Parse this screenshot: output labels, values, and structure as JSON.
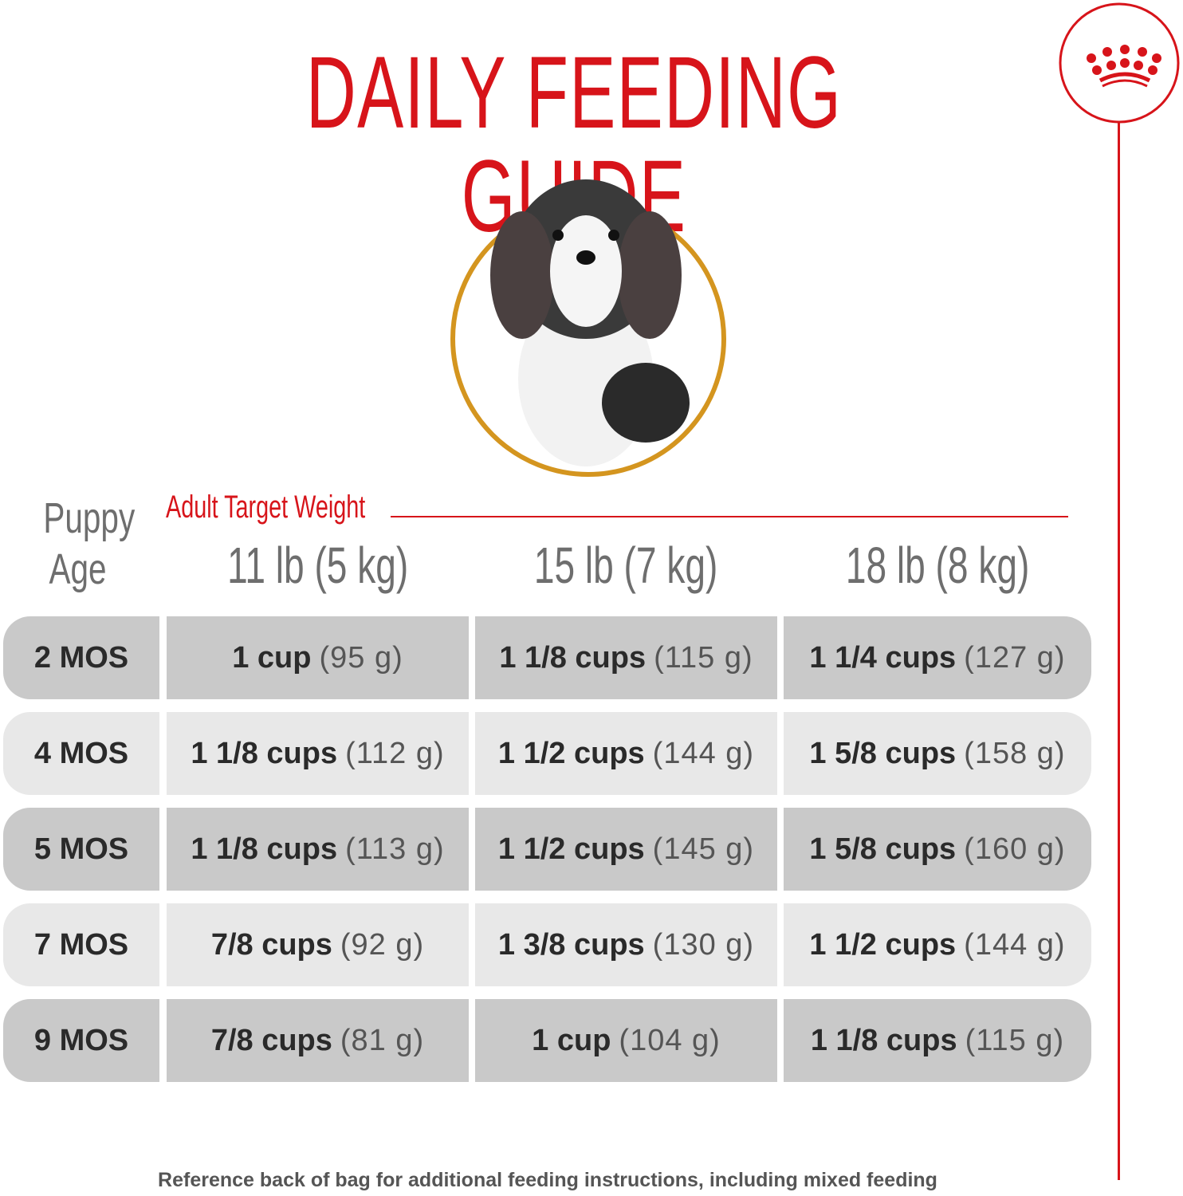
{
  "title": "DAILY FEEDING GUIDE",
  "colors": {
    "brand_red": "#d7141a",
    "ring_gold": "#d4951f",
    "row_dark": "#c9c9c9",
    "row_light": "#e8e8e8"
  },
  "header": {
    "puppy": "Puppy",
    "age": "Age",
    "adult_target_weight": "Adult Target Weight",
    "weights": [
      "11 lb (5 kg)",
      "15 lb (7 kg)",
      "18 lb (8 kg)"
    ]
  },
  "rows": [
    {
      "age": "2 MOS",
      "cells": [
        {
          "cups": "1 cup",
          "grams": "(95 g)"
        },
        {
          "cups": "1 1/8 cups",
          "grams": "(115 g)"
        },
        {
          "cups": "1 1/4 cups",
          "grams": "(127 g)"
        }
      ]
    },
    {
      "age": "4 MOS",
      "cells": [
        {
          "cups": "1 1/8 cups",
          "grams": "(112 g)"
        },
        {
          "cups": "1 1/2 cups",
          "grams": "(144 g)"
        },
        {
          "cups": "1 5/8 cups",
          "grams": "(158 g)"
        }
      ]
    },
    {
      "age": "5 MOS",
      "cells": [
        {
          "cups": "1 1/8 cups",
          "grams": "(113 g)"
        },
        {
          "cups": "1 1/2 cups",
          "grams": "(145 g)"
        },
        {
          "cups": "1 5/8 cups",
          "grams": "(160 g)"
        }
      ]
    },
    {
      "age": "7 MOS",
      "cells": [
        {
          "cups": "7/8 cups",
          "grams": "(92 g)"
        },
        {
          "cups": "1 3/8 cups",
          "grams": "(130 g)"
        },
        {
          "cups": "1 1/2 cups",
          "grams": "(144 g)"
        }
      ]
    },
    {
      "age": "9 MOS",
      "cells": [
        {
          "cups": "7/8 cups",
          "grams": "(81 g)"
        },
        {
          "cups": "1 cup",
          "grams": "(104 g)"
        },
        {
          "cups": "1 1/8 cups",
          "grams": "(115 g)"
        }
      ]
    }
  ],
  "footer": "Reference back of bag for additional feeding instructions, including mixed feeding"
}
